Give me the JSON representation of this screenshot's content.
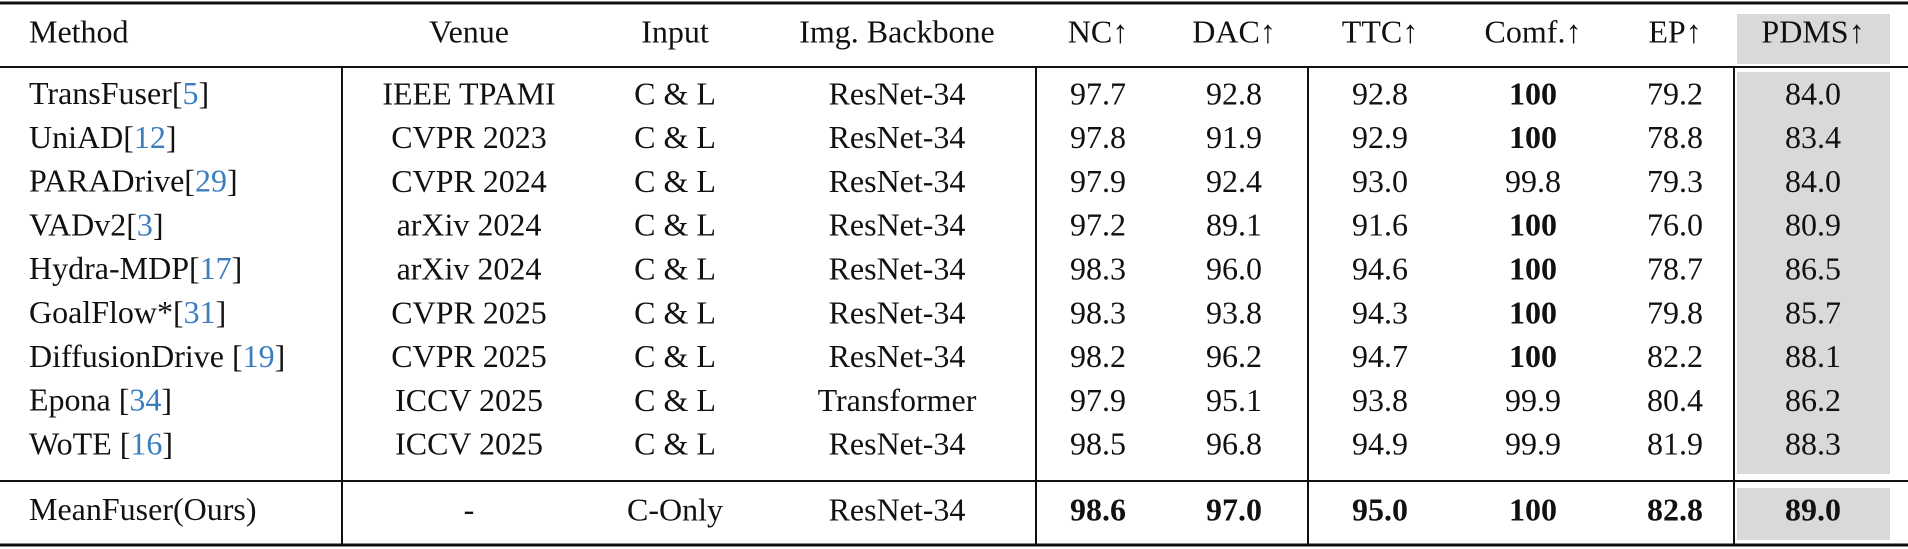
{
  "table": {
    "header": [
      "Method",
      "Venue",
      "Input",
      "Img. Backbone",
      "NC↑",
      "DAC↑",
      "TTC↑",
      "Comf.↑",
      "EP↑",
      "PDMS↑"
    ],
    "rows": [
      {
        "method": [
          "TransFuser[",
          "5",
          "]"
        ],
        "cells": [
          "IEEE TPAMI",
          "C & L",
          "ResNet-34",
          "97.7",
          "92.8",
          "92.8",
          "100",
          "79.2",
          "84.0"
        ],
        "bold": [
          6
        ]
      },
      {
        "method": [
          "UniAD[",
          "12",
          "]"
        ],
        "cells": [
          "CVPR 2023",
          "C & L",
          "ResNet-34",
          "97.8",
          "91.9",
          "92.9",
          "100",
          "78.8",
          "83.4"
        ],
        "bold": [
          6
        ]
      },
      {
        "method": [
          "PARADrive[",
          "29",
          "]"
        ],
        "cells": [
          "CVPR 2024",
          "C & L",
          "ResNet-34",
          "97.9",
          "92.4",
          "93.0",
          "99.8",
          "79.3",
          "84.0"
        ],
        "bold": []
      },
      {
        "method": [
          "VADv2[",
          "3",
          "]"
        ],
        "cells": [
          "arXiv 2024",
          "C & L",
          "ResNet-34",
          "97.2",
          "89.1",
          "91.6",
          "100",
          "76.0",
          "80.9"
        ],
        "bold": [
          6
        ]
      },
      {
        "method": [
          "Hydra-MDP[",
          "17",
          "]"
        ],
        "cells": [
          "arXiv 2024",
          "C & L",
          "ResNet-34",
          "98.3",
          "96.0",
          "94.6",
          "100",
          "78.7",
          "86.5"
        ],
        "bold": [
          6
        ]
      },
      {
        "method": [
          "GoalFlow*[",
          "31",
          "]"
        ],
        "cells": [
          "CVPR 2025",
          "C & L",
          "ResNet-34",
          "98.3",
          "93.8",
          "94.3",
          "100",
          "79.8",
          "85.7"
        ],
        "bold": [
          6
        ]
      },
      {
        "method": [
          "DiffusionDrive [",
          "19",
          "]"
        ],
        "cells": [
          "CVPR 2025",
          "C & L",
          "ResNet-34",
          "98.2",
          "96.2",
          "94.7",
          "100",
          "82.2",
          "88.1"
        ],
        "bold": [
          6
        ]
      },
      {
        "method": [
          "Epona [",
          "34",
          "]"
        ],
        "cells": [
          "ICCV 2025",
          "C & L",
          "Transformer",
          "97.9",
          "95.1",
          "93.8",
          "99.9",
          "80.4",
          "86.2"
        ],
        "bold": []
      },
      {
        "method": [
          "WoTE [",
          "16",
          "]"
        ],
        "cells": [
          "ICCV 2025",
          "C & L",
          "ResNet-34",
          "98.5",
          "96.8",
          "94.9",
          "99.9",
          "81.9",
          "88.3"
        ],
        "bold": []
      },
      {
        "method": [
          "MeanFuser(Ours)"
        ],
        "cells": [
          "-",
          "C-Only",
          "ResNet-34",
          "98.6",
          "97.0",
          "95.0",
          "100",
          "82.8",
          "89.0"
        ],
        "bold": [
          3,
          4,
          5,
          6,
          7,
          8
        ]
      }
    ]
  }
}
